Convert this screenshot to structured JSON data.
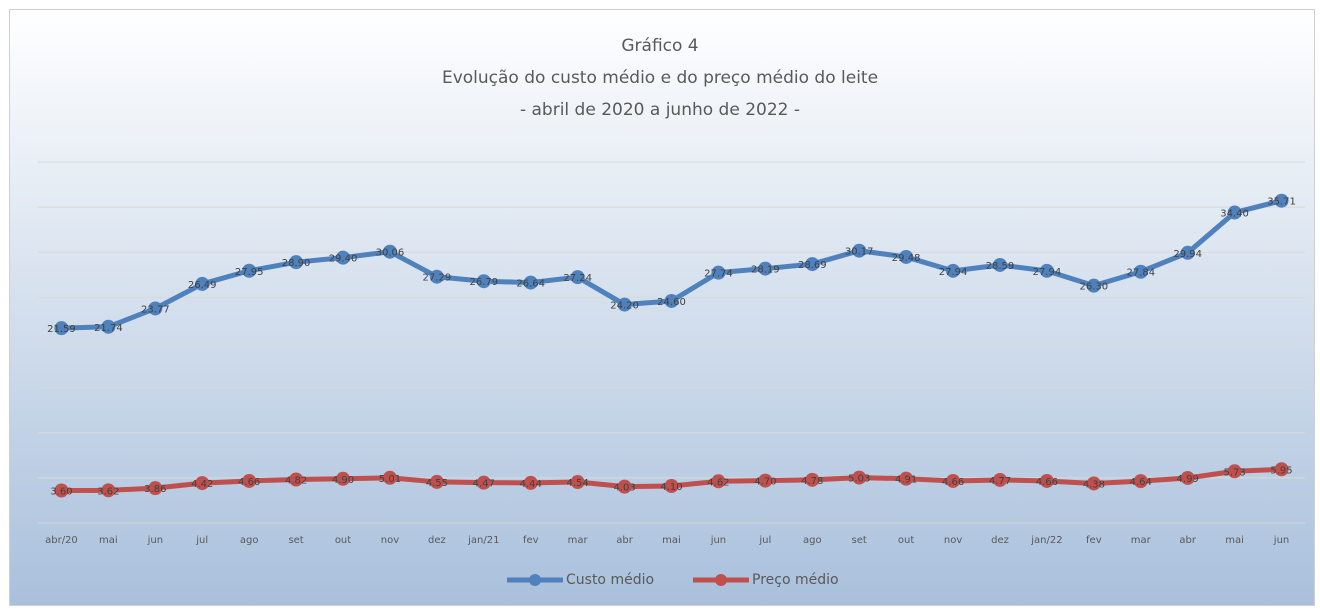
{
  "chart_data": {
    "type": "line",
    "title": "Gráfico 4",
    "subtitle": "Evolução do custo médio e do preço médio do leite",
    "date_range": "- abril de 2020 a junho de 2022 -",
    "categories": [
      "abr/20",
      "mai",
      "jun",
      "jul",
      "ago",
      "set",
      "out",
      "nov",
      "dez",
      "jan/21",
      "fev",
      "mar",
      "abr",
      "mai",
      "jun",
      "jul",
      "ago",
      "set",
      "out",
      "nov",
      "dez",
      "jan/22",
      "fev",
      "mar",
      "abr",
      "mai",
      "jun"
    ],
    "series": [
      {
        "name": "Custo médio",
        "color": "#4f81bd",
        "values": [
          21.59,
          21.74,
          23.77,
          26.49,
          27.95,
          28.9,
          29.4,
          30.06,
          27.29,
          26.79,
          26.64,
          27.24,
          24.2,
          24.6,
          27.74,
          28.19,
          28.69,
          30.17,
          29.48,
          27.94,
          28.59,
          27.94,
          26.3,
          27.84,
          29.94,
          34.4,
          35.71
        ],
        "value_labels": [
          "21.59",
          "21.74",
          "23.77",
          "26.49",
          "27.95",
          "28.90",
          "29.40",
          "30.06",
          "27.29",
          "26.79",
          "26.64",
          "27.24",
          "24.20",
          "24.60",
          "27.74",
          "28.19",
          "28.69",
          "30.17",
          "29.48",
          "27.94",
          "28.59",
          "27.94",
          "26.30",
          "27.84",
          "29.94",
          "34.40",
          "35.71"
        ]
      },
      {
        "name": "Preço médio",
        "color": "#c0504d",
        "values": [
          3.6,
          3.62,
          3.86,
          4.42,
          4.66,
          4.82,
          4.9,
          5.01,
          4.55,
          4.47,
          4.44,
          4.54,
          4.03,
          4.1,
          4.62,
          4.7,
          4.78,
          5.03,
          4.91,
          4.66,
          4.77,
          4.66,
          4.38,
          4.64,
          4.99,
          5.73,
          5.95
        ],
        "value_labels": [
          "3.60",
          "3.62",
          "3.86",
          "4.42",
          "4.66",
          "4.82",
          "4.90",
          "5.01",
          "4.55",
          "4.47",
          "4.44",
          "4.54",
          "4.03",
          "4.10",
          "4.62",
          "4.70",
          "4.78",
          "5.03",
          "4.91",
          "4.66",
          "4.77",
          "4.66",
          "4.38",
          "4.64",
          "4.99",
          "5.73",
          "5.95"
        ]
      }
    ],
    "ylim": [
      0,
      40
    ],
    "yticks": [
      0,
      5,
      10,
      15,
      20,
      25,
      30,
      35,
      40
    ],
    "grid": true,
    "legend": "bottom"
  }
}
